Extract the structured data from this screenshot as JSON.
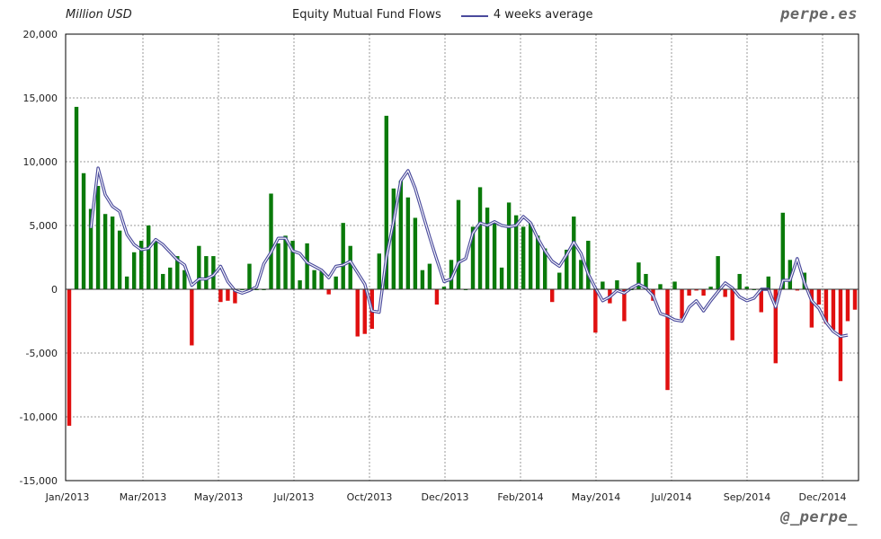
{
  "header": {
    "unit_label": "Million USD",
    "title": "Equity Mutual Fund Flows",
    "legend_avg": "4 weeks average",
    "brand": "perpe.es"
  },
  "footer": {
    "handle": "@_perpe_"
  },
  "colors": {
    "positive": "#0a7a0a",
    "negative": "#e01010",
    "average": "#4a4a9c",
    "grid": "#9a9a9a"
  },
  "chart_data": {
    "type": "bar",
    "title": "Equity Mutual Fund Flows",
    "ylabel": "Million USD",
    "ylim": [
      -15000,
      20000
    ],
    "yticks": [
      20000,
      15000,
      10000,
      5000,
      0,
      -5000,
      -10000,
      -15000
    ],
    "ytick_labels": [
      "20,000",
      "15,000",
      "10,000",
      "5,000",
      "0",
      "-5,000",
      "-10,000",
      "-15,000"
    ],
    "xticks": [
      "Jan/2013",
      "Mar/2013",
      "May/2013",
      "Jul/2013",
      "Oct/2013",
      "Dec/2013",
      "Feb/2014",
      "May/2014",
      "Jul/2014",
      "Sep/2014",
      "Dec/2014"
    ],
    "grid": true,
    "legend": "top-center",
    "series": [
      {
        "name": "",
        "type": "bar",
        "values": [
          -10700,
          14300,
          9100,
          6300,
          8100,
          5900,
          5700,
          4600,
          1000,
          2900,
          3800,
          5000,
          3800,
          1200,
          1700,
          2600,
          1500,
          -4400,
          3400,
          2600,
          2600,
          -1000,
          -900,
          -1100,
          0,
          2000,
          0,
          0,
          7500,
          3600,
          4200,
          3800,
          700,
          3600,
          1500,
          1400,
          -400,
          1000,
          5200,
          3400,
          -3700,
          -3500,
          -3100,
          2800,
          13600,
          7900,
          8500,
          7200,
          5600,
          1500,
          2000,
          -1200,
          200,
          2300,
          7000,
          0,
          4900,
          8000,
          6400,
          5200,
          1700,
          6800,
          5800,
          4900,
          5200,
          4200,
          3200,
          -1000,
          1300,
          3100,
          5700,
          2300,
          3800,
          -3400,
          600,
          -1100,
          700,
          -2500,
          0,
          2100,
          1200,
          -900,
          400,
          -7900,
          600,
          -2300,
          -500,
          -100,
          -500,
          200,
          2600,
          -600,
          -4000,
          1200,
          200,
          0,
          -1800,
          1000,
          -5800,
          6000,
          2300,
          -100,
          1300,
          -3000,
          -1200,
          -2700,
          -3200,
          -7200,
          -2500,
          -1600
        ]
      },
      {
        "name": "4 weeks average",
        "type": "line",
        "values": [
          null,
          null,
          null,
          4800,
          9500,
          7400,
          6500,
          6100,
          4300,
          3500,
          3100,
          3200,
          3900,
          3500,
          2900,
          2300,
          1900,
          300,
          800,
          800,
          1100,
          1800,
          600,
          -100,
          -300,
          -100,
          200,
          2000,
          2900,
          4000,
          4000,
          3000,
          2800,
          2100,
          1800,
          1500,
          900,
          1800,
          1900,
          2200,
          1300,
          400,
          -1700,
          -1800,
          2500,
          5300,
          8500,
          9300,
          7900,
          6000,
          4100,
          2300,
          600,
          800,
          2100,
          2400,
          4400,
          5200,
          5000,
          5300,
          5000,
          4900,
          5000,
          5700,
          5200,
          4000,
          3000,
          2200,
          1800,
          2700,
          3700,
          2800,
          1200,
          100,
          -900,
          -600,
          -100,
          -300,
          100,
          400,
          100,
          -500,
          -1900,
          -2100,
          -2400,
          -2500,
          -1400,
          -900,
          -1700,
          -900,
          -200,
          500,
          100,
          -600,
          -900,
          -700,
          0,
          0,
          -1400,
          700,
          700,
          2400,
          500,
          -900,
          -1500,
          -2600,
          -3300,
          -3700,
          -3600
        ]
      }
    ]
  }
}
